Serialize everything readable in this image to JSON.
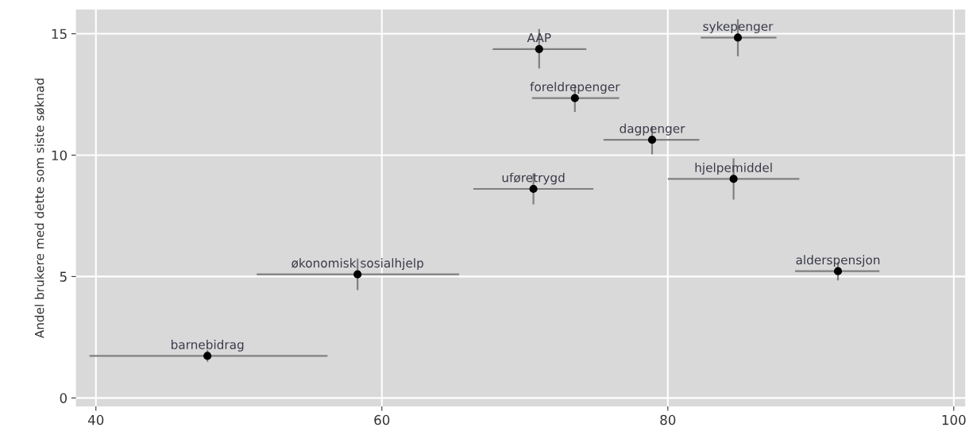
{
  "chart_data": {
    "type": "scatter",
    "ylabel": "Andel brukere med dette som siste søknad",
    "x": [
      71.0,
      84.9,
      73.5,
      78.9,
      70.6,
      84.6,
      91.9,
      58.3,
      47.8
    ],
    "values": [
      14.37,
      14.84,
      12.35,
      10.63,
      8.61,
      9.02,
      5.22,
      5.09,
      1.73
    ],
    "errors": [
      [
        13.57,
        15.2
      ],
      [
        14.07,
        15.6
      ],
      [
        11.78,
        12.9
      ],
      [
        10.03,
        11.2
      ],
      [
        7.97,
        9.25
      ],
      [
        8.17,
        9.87
      ],
      [
        4.84,
        5.6
      ],
      [
        4.44,
        5.74
      ],
      [
        1.49,
        1.97
      ]
    ],
    "xerrors": [
      [
        67.75,
        74.3
      ],
      [
        82.3,
        87.6
      ],
      [
        70.5,
        76.6
      ],
      [
        75.5,
        82.2
      ],
      [
        66.4,
        74.8
      ],
      [
        80.0,
        89.2
      ],
      [
        88.9,
        94.8
      ],
      [
        51.25,
        65.4
      ],
      [
        39.55,
        56.2
      ]
    ],
    "color": "#000000",
    "annotations": [
      {
        "text": "AAP",
        "x": 71.0,
        "y": 14.37
      },
      {
        "text": "sykepenger",
        "x": 84.9,
        "y": 14.84
      },
      {
        "text": "foreldrepenger",
        "x": 73.5,
        "y": 12.35
      },
      {
        "text": "dagpenger",
        "x": 78.9,
        "y": 10.63
      },
      {
        "text": "uføretrygd",
        "x": 70.6,
        "y": 8.61
      },
      {
        "text": "hjelpemiddel",
        "x": 84.6,
        "y": 9.02
      },
      {
        "text": "alderspensjon",
        "x": 91.9,
        "y": 5.22
      },
      {
        "text": "økonomisk sosialhjelp",
        "x": 58.3,
        "y": 5.09
      },
      {
        "text": "barnebidrag",
        "x": 47.8,
        "y": 1.73
      }
    ],
    "xlim": [
      38.6,
      100.8
    ],
    "ylim": [
      -0.35,
      16.0
    ],
    "xticks": [
      40,
      60,
      80,
      100
    ],
    "yticks": [
      0,
      5,
      10,
      15
    ],
    "grid": true,
    "marker": "circle"
  }
}
